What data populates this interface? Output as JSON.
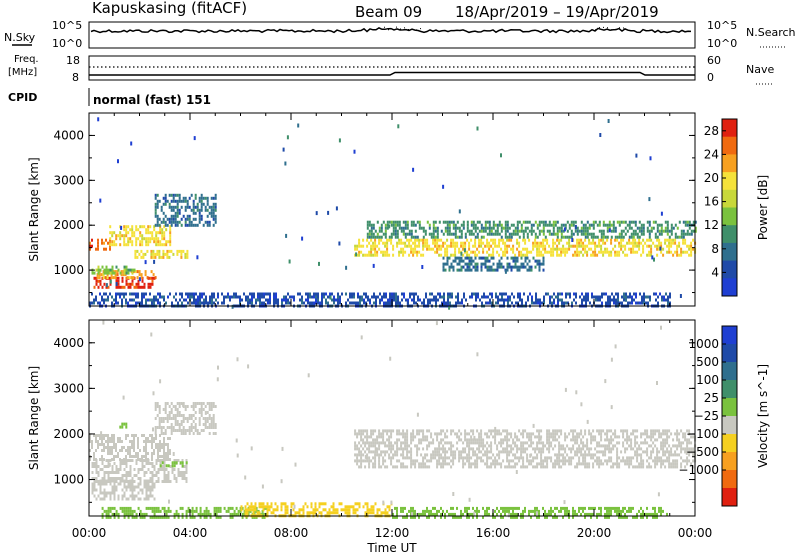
{
  "header": {
    "station": "Kapuskasing (fitACF)",
    "beam": "Beam 09",
    "dates": "18/Apr/2019 – 19/Apr/2019"
  },
  "strip_panels": {
    "nsky_label": "N.Sky",
    "nsearch_label": "N.Search",
    "noise_ticks_left": [
      "10^5",
      "10^0"
    ],
    "noise_ticks_right": [
      "10^5",
      "10^0"
    ],
    "freq_label_line1": "Freq.",
    "freq_label_line2": "[MHz]",
    "freq_ticks": [
      "18",
      "8"
    ],
    "nave_label": "Nave",
    "nave_ticks": [
      "60",
      "0"
    ],
    "cpid_label": "CPID",
    "cpid_text": "normal (fast) 151"
  },
  "colors": {
    "power_scale": [
      "#1f3fd2",
      "#1f4aa8",
      "#2f6f8e",
      "#3f8f6a",
      "#7ac23e",
      "#c8d83a",
      "#f5e23a",
      "#f7a020",
      "#f06a10",
      "#e02010"
    ],
    "velocity_scale": [
      "#1f3fd2",
      "#1f4aa8",
      "#2f6f8e",
      "#3f8f6a",
      "#7ac23e",
      "#c8c8c0",
      "#f5d020",
      "#f7a020",
      "#f06a10",
      "#e02010"
    ],
    "ground_scatter": "#c8c8c0"
  },
  "chart_data": [
    {
      "type": "heatmap",
      "name": "power",
      "ylabel": "Slant Range [km]",
      "xlabel": "Time UT",
      "xticks": [
        "00:00",
        "04:00",
        "08:00",
        "12:00",
        "16:00",
        "20:00",
        "00:00"
      ],
      "yticks": [
        1000,
        2000,
        3000,
        4000
      ],
      "ylim": [
        200,
        4500
      ],
      "xlim_hours": [
        0,
        24
      ],
      "colorbar": {
        "label": "Power [dB]",
        "ticks": [
          4,
          8,
          12,
          16,
          20,
          24,
          28
        ],
        "range": [
          0,
          30
        ]
      },
      "regions": [
        {
          "t0": 0.1,
          "t1": 2.6,
          "r0": 600,
          "r1": 850,
          "value": 28
        },
        {
          "t0": 0.3,
          "t1": 2.6,
          "r0": 850,
          "r1": 1000,
          "value": 22
        },
        {
          "t0": 0.1,
          "t1": 1.8,
          "r0": 950,
          "r1": 1100,
          "value": 12
        },
        {
          "t0": 1.8,
          "t1": 3.9,
          "r0": 1300,
          "r1": 1450,
          "value": 20
        },
        {
          "t0": 0.0,
          "t1": 0.8,
          "r0": 1450,
          "r1": 1700,
          "value": 24
        },
        {
          "t0": 0.8,
          "t1": 3.2,
          "r0": 1550,
          "r1": 2000,
          "value": 18
        },
        {
          "t0": 2.6,
          "t1": 5.0,
          "r0": 2000,
          "r1": 2700,
          "value": 8
        },
        {
          "t0": 10.5,
          "t1": 24.0,
          "r0": 1300,
          "r1": 1700,
          "value": 20
        },
        {
          "t0": 11.0,
          "t1": 24.0,
          "r0": 1700,
          "r1": 2100,
          "value": 10
        },
        {
          "t0": 14.0,
          "t1": 18.0,
          "r0": 1000,
          "r1": 1300,
          "value": 6
        },
        {
          "t0": 0.0,
          "t1": 23.0,
          "r0": 200,
          "r1": 500,
          "value": 5
        }
      ]
    },
    {
      "type": "heatmap",
      "name": "velocity",
      "ylabel": "Slant Range [km]",
      "xlabel": "Time UT",
      "xticks": [
        "00:00",
        "04:00",
        "08:00",
        "12:00",
        "16:00",
        "20:00",
        "00:00"
      ],
      "yticks": [
        1000,
        2000,
        3000,
        4000
      ],
      "ylim": [
        200,
        4500
      ],
      "xlim_hours": [
        0,
        24
      ],
      "colorbar": {
        "label": "Velocity [m s^-1]",
        "ticks": [
          "1000",
          "500",
          "100",
          "25",
          "−25",
          "−100",
          "−500",
          "−1000"
        ]
      },
      "regions": [
        {
          "t0": 0.1,
          "t1": 2.6,
          "r0": 600,
          "r1": 1000,
          "value": "ground"
        },
        {
          "t0": 0.1,
          "t1": 3.9,
          "r0": 950,
          "r1": 1450,
          "value": "ground"
        },
        {
          "t0": 0.0,
          "t1": 3.2,
          "r0": 1450,
          "r1": 2000,
          "value": "ground"
        },
        {
          "t0": 2.6,
          "t1": 5.0,
          "r0": 2000,
          "r1": 2700,
          "value": "ground"
        },
        {
          "t0": 2.8,
          "t1": 3.9,
          "r0": 1300,
          "r1": 1400,
          "value": 100
        },
        {
          "t0": 1.2,
          "t1": 1.6,
          "r0": 2150,
          "r1": 2250,
          "value": 100
        },
        {
          "t0": 10.5,
          "t1": 24.0,
          "r0": 1300,
          "r1": 2100,
          "value": "ground"
        },
        {
          "t0": 0.5,
          "t1": 7.0,
          "r0": 200,
          "r1": 400,
          "value": 100
        },
        {
          "t0": 6.0,
          "t1": 12.0,
          "r0": 200,
          "r1": 500,
          "value": -25
        },
        {
          "t0": 12.0,
          "t1": 23.0,
          "r0": 200,
          "r1": 400,
          "value": 100
        }
      ]
    }
  ]
}
